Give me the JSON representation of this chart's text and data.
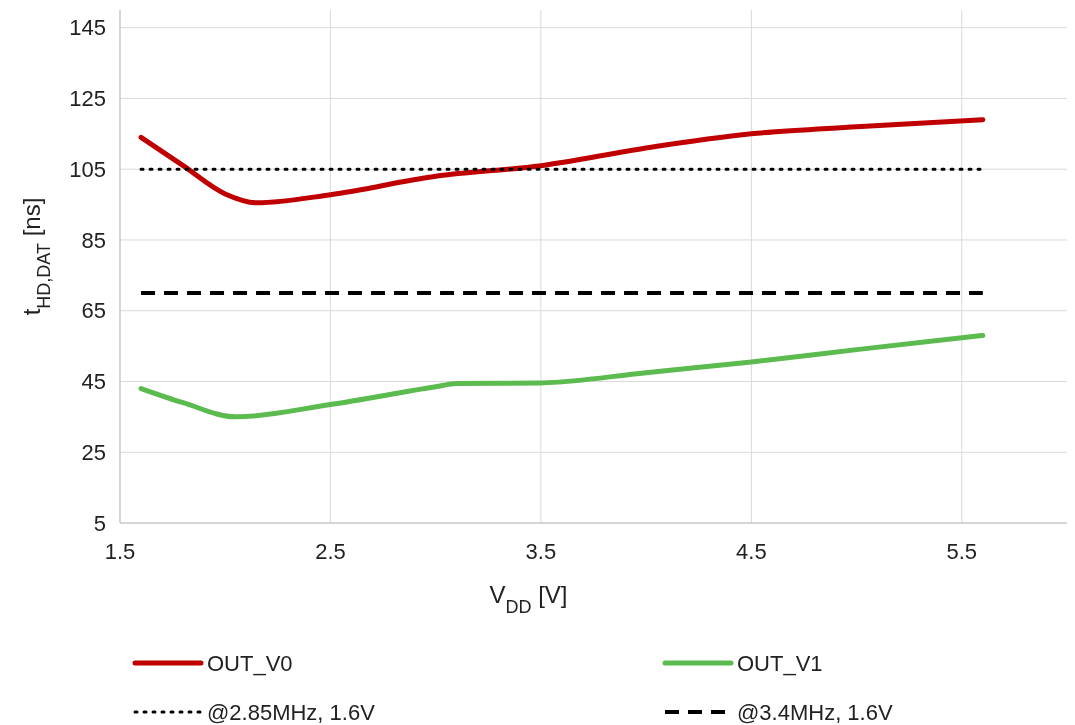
{
  "chart_data": {
    "type": "line",
    "xlabel": "V$_{DD}$ [V]",
    "ylabel": "t$_{HD,DAT}$ [ns]",
    "xlim": [
      1.5,
      6
    ],
    "xticks": [
      1.5,
      2.5,
      3.5,
      4.5,
      5.5
    ],
    "ylim": [
      5,
      150
    ],
    "yticks": [
      5,
      25,
      45,
      65,
      85,
      105,
      125,
      145
    ],
    "grid": true,
    "legend": "bottom",
    "marker": "none",
    "series": [
      {
        "name": "OUT_V0",
        "color": "#c00000",
        "line_style": "solid",
        "x": [
          1.6,
          1.8,
          2.0,
          2.15,
          2.5,
          3.0,
          3.5,
          4.0,
          4.5,
          5.0,
          5.6
        ],
        "values": [
          114,
          106,
          98,
          95.5,
          97.8,
          103,
          106,
          111,
          115,
          117,
          119
        ]
      },
      {
        "name": "OUT_V1",
        "color": "#5bbb4f",
        "line_style": "solid",
        "x": [
          1.6,
          1.8,
          2.05,
          2.5,
          3.0,
          3.1,
          3.5,
          4.0,
          4.5,
          5.0,
          5.6
        ],
        "values": [
          43,
          39,
          35,
          38.5,
          43.5,
          44.4,
          44.6,
          47.5,
          50.5,
          54,
          58
        ]
      },
      {
        "name": "@2.85MHz, 1.6V",
        "color": "#000000",
        "line_style": "dotted",
        "x": [
          1.6,
          5.6
        ],
        "values": [
          105,
          105
        ]
      },
      {
        "name": "@3.4MHz, 1.6V",
        "color": "#000000",
        "line_style": "dashed",
        "x": [
          1.6,
          5.6
        ],
        "values": [
          70,
          70
        ]
      }
    ]
  }
}
